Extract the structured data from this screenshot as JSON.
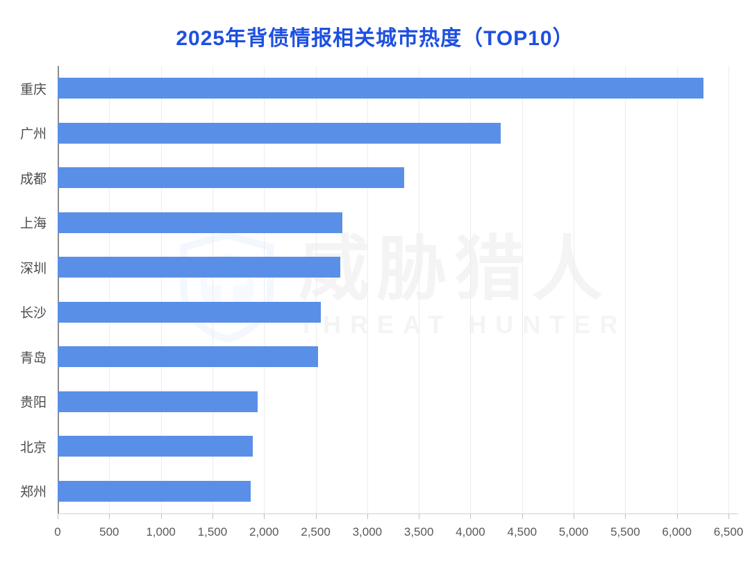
{
  "title": "2025年背债情报相关城市热度（TOP10）",
  "watermark": {
    "logo_icon": "shield-logo-icon",
    "text_cn": "威胁猎人",
    "text_en": "THREAT HUNTER"
  },
  "colors": {
    "bar": "#5a8fe8",
    "title": "#1d4fe0",
    "gridline": "#ececec",
    "y_axis_line": "#8c8c8c",
    "axis_text": "#595959"
  },
  "chart_data": {
    "type": "bar",
    "orientation": "horizontal",
    "title": "2025年背债情报相关城市热度（TOP10）",
    "categories": [
      "重庆",
      "广州",
      "成都",
      "上海",
      "深圳",
      "长沙",
      "青岛",
      "贵阳",
      "北京",
      "郑州"
    ],
    "values": [
      6260,
      4290,
      3360,
      2760,
      2740,
      2550,
      2520,
      1940,
      1890,
      1870
    ],
    "xlabel": "",
    "ylabel": "",
    "xlim": [
      0,
      6500
    ],
    "tick_step": 500,
    "tick_values": [
      0,
      500,
      1000,
      1500,
      2000,
      2500,
      3000,
      3500,
      4000,
      4500,
      5000,
      5500,
      6000,
      6500
    ],
    "tick_labels": [
      "0",
      "500",
      "1,000",
      "1,500",
      "2,000",
      "2,500",
      "3,000",
      "3,500",
      "4,000",
      "4,500",
      "5,000",
      "5,500",
      "6,000",
      "6,500"
    ],
    "grid": true,
    "legend": "none",
    "bar_color": "#5a8fe8"
  }
}
